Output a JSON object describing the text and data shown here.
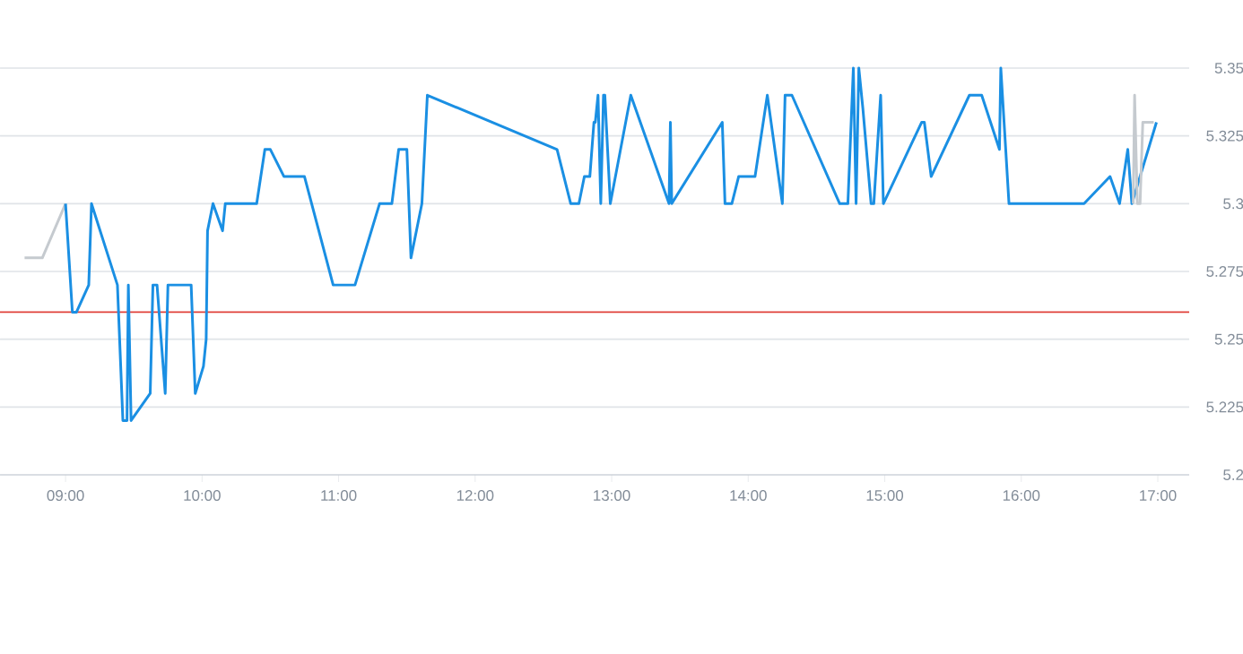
{
  "chart_data": {
    "type": "line",
    "xlim": [
      8.52,
      17.23
    ],
    "ylim": [
      5.2,
      5.35
    ],
    "xticks": [
      {
        "value": 9,
        "label": "09:00"
      },
      {
        "value": 10,
        "label": "10:00"
      },
      {
        "value": 11,
        "label": "11:00"
      },
      {
        "value": 12,
        "label": "12:00"
      },
      {
        "value": 13,
        "label": "13:00"
      },
      {
        "value": 14,
        "label": "14:00"
      },
      {
        "value": 15,
        "label": "15:00"
      },
      {
        "value": 16,
        "label": "16:00"
      },
      {
        "value": 17,
        "label": "17:00"
      }
    ],
    "yticks": [
      5.2,
      5.225,
      5.25,
      5.275,
      5.3,
      5.325,
      5.35
    ],
    "grid": "y",
    "marker": "none",
    "line_style": "solid",
    "ref_lines": [
      {
        "axis": "y",
        "value": 5.26,
        "color": "#e0413a"
      }
    ],
    "series": [
      {
        "color": "#c5cacf",
        "x": [
          8.7,
          8.83,
          9.0
        ],
        "values": [
          5.28,
          5.28,
          5.3
        ]
      },
      {
        "color": "#1a8fe3",
        "x": [
          9.0,
          9.05,
          9.08,
          9.17,
          9.19,
          9.38,
          9.42,
          9.45,
          9.46,
          9.48,
          9.62,
          9.64,
          9.67,
          9.73,
          9.75,
          9.92,
          9.95,
          10.01,
          10.03,
          10.04,
          10.08,
          10.15,
          10.17,
          10.4,
          10.46,
          10.5,
          10.6,
          10.75,
          10.96,
          11.12,
          11.3,
          11.39,
          11.44,
          11.5,
          11.53,
          11.61,
          11.65,
          12.6,
          12.7,
          12.76,
          12.8,
          12.84,
          12.87,
          12.88,
          12.9,
          12.92,
          12.94,
          12.95,
          12.99,
          13.14,
          13.42,
          13.43,
          13.44,
          13.81,
          13.83,
          13.88,
          13.93,
          14.05,
          14.14,
          14.25,
          14.27,
          14.32,
          14.67,
          14.73,
          14.77,
          14.79,
          14.81,
          14.84,
          14.9,
          14.92,
          14.97,
          14.99,
          15.27,
          15.29,
          15.34,
          15.62,
          15.71,
          15.84,
          15.85,
          15.91,
          16.46,
          16.65,
          16.72,
          16.78,
          16.81,
          16.99
        ],
        "values": [
          5.3,
          5.26,
          5.26,
          5.27,
          5.3,
          5.27,
          5.22,
          5.22,
          5.27,
          5.22,
          5.23,
          5.27,
          5.27,
          5.23,
          5.27,
          5.27,
          5.23,
          5.24,
          5.25,
          5.29,
          5.3,
          5.29,
          5.3,
          5.3,
          5.32,
          5.32,
          5.31,
          5.31,
          5.27,
          5.27,
          5.3,
          5.3,
          5.32,
          5.32,
          5.28,
          5.3,
          5.34,
          5.32,
          5.3,
          5.3,
          5.31,
          5.31,
          5.33,
          5.33,
          5.34,
          5.3,
          5.34,
          5.34,
          5.3,
          5.34,
          5.3,
          5.33,
          5.3,
          5.33,
          5.3,
          5.3,
          5.31,
          5.31,
          5.34,
          5.3,
          5.34,
          5.34,
          5.3,
          5.3,
          5.35,
          5.3,
          5.35,
          5.335,
          5.3,
          5.3,
          5.34,
          5.3,
          5.33,
          5.33,
          5.31,
          5.34,
          5.34,
          5.32,
          5.35,
          5.3,
          5.3,
          5.31,
          5.3,
          5.32,
          5.3,
          5.33
        ]
      },
      {
        "color": "#c5cacf",
        "x": [
          16.82,
          16.83,
          16.85,
          16.87,
          16.89,
          16.97
        ],
        "values": [
          5.3,
          5.34,
          5.3,
          5.3,
          5.33,
          5.33
        ]
      }
    ]
  }
}
